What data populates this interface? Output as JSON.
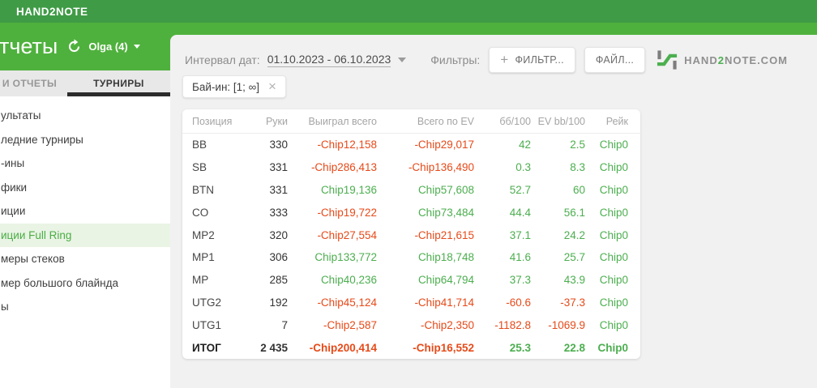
{
  "colors": {
    "topbar_green": "#3f9b46",
    "band_green": "#4fb13d",
    "accent_green": "#4caf50",
    "negative_red": "#e64a19",
    "tab_underline": "#2c2c2c",
    "main_background": "#f1f1f1"
  },
  "topbar": {
    "brand": "HAND2NOTE"
  },
  "header": {
    "title": "тчеты",
    "account": "Olga (4)"
  },
  "tabs": [
    {
      "label": "И ОТЧЕТЫ",
      "active": false
    },
    {
      "label": "ТУРНИРЫ",
      "active": true
    }
  ],
  "sidebar": {
    "items": [
      {
        "label": "ультаты",
        "active": false
      },
      {
        "label": "ледние турниры",
        "active": false
      },
      {
        "label": "-ины",
        "active": false
      },
      {
        "label": "фики",
        "active": false
      },
      {
        "label": "иции",
        "active": false
      },
      {
        "label": "иции Full Ring",
        "active": true
      },
      {
        "label": "меры стеков",
        "active": false
      },
      {
        "label": "мер большого блайнда",
        "active": false
      },
      {
        "label": "ы",
        "active": false
      }
    ]
  },
  "filterbar": {
    "date_label": "Интервал дат:",
    "date_value": "01.10.2023 - 06.10.2023",
    "filters_label": "Фильтры:",
    "filter_button": "ФИЛЬТР...",
    "file_button": "ФАЙЛ...",
    "logo": {
      "pre": "HAND",
      "two": "2",
      "post": "NOTE.COM"
    }
  },
  "filter_chip": {
    "label": "Бай-ин: [1; ∞]"
  },
  "table": {
    "columns": [
      "Позиция",
      "Руки",
      "Выиграл всего",
      "Всего по EV",
      "бб/100",
      "EV bb/100",
      "Рейк"
    ],
    "column_keys": [
      "position",
      "hands",
      "won_total",
      "ev_total",
      "bb100",
      "ev_bb100",
      "rake"
    ],
    "rows": [
      {
        "position": "BB",
        "hands": "330",
        "won_total": "-Chip12,158",
        "ev_total": "-Chip29,017",
        "bb100": "42",
        "ev_bb100": "2.5",
        "rake": "Chip0",
        "total": false
      },
      {
        "position": "SB",
        "hands": "331",
        "won_total": "-Chip286,413",
        "ev_total": "-Chip136,490",
        "bb100": "0.3",
        "ev_bb100": "8.3",
        "rake": "Chip0",
        "total": false
      },
      {
        "position": "BTN",
        "hands": "331",
        "won_total": "Chip19,136",
        "ev_total": "Chip57,608",
        "bb100": "52.7",
        "ev_bb100": "60",
        "rake": "Chip0",
        "total": false
      },
      {
        "position": "CO",
        "hands": "333",
        "won_total": "-Chip19,722",
        "ev_total": "Chip73,484",
        "bb100": "44.4",
        "ev_bb100": "56.1",
        "rake": "Chip0",
        "total": false
      },
      {
        "position": "MP2",
        "hands": "320",
        "won_total": "-Chip27,554",
        "ev_total": "-Chip21,615",
        "bb100": "37.1",
        "ev_bb100": "24.2",
        "rake": "Chip0",
        "total": false
      },
      {
        "position": "MP1",
        "hands": "306",
        "won_total": "Chip133,772",
        "ev_total": "Chip18,748",
        "bb100": "41.6",
        "ev_bb100": "25.7",
        "rake": "Chip0",
        "total": false
      },
      {
        "position": "MP",
        "hands": "285",
        "won_total": "Chip40,236",
        "ev_total": "Chip64,794",
        "bb100": "37.3",
        "ev_bb100": "43.9",
        "rake": "Chip0",
        "total": false
      },
      {
        "position": "UTG2",
        "hands": "192",
        "won_total": "-Chip45,124",
        "ev_total": "-Chip41,714",
        "bb100": "-60.6",
        "ev_bb100": "-37.3",
        "rake": "Chip0",
        "total": false
      },
      {
        "position": "UTG1",
        "hands": "7",
        "won_total": "-Chip2,587",
        "ev_total": "-Chip2,350",
        "bb100": "-1182.8",
        "ev_bb100": "-1069.9",
        "rake": "Chip0",
        "total": false
      },
      {
        "position": "ИТОГ",
        "hands": "2 435",
        "won_total": "-Chip200,414",
        "ev_total": "-Chip16,552",
        "bb100": "25.3",
        "ev_bb100": "22.8",
        "rake": "Chip0",
        "total": true
      }
    ]
  }
}
